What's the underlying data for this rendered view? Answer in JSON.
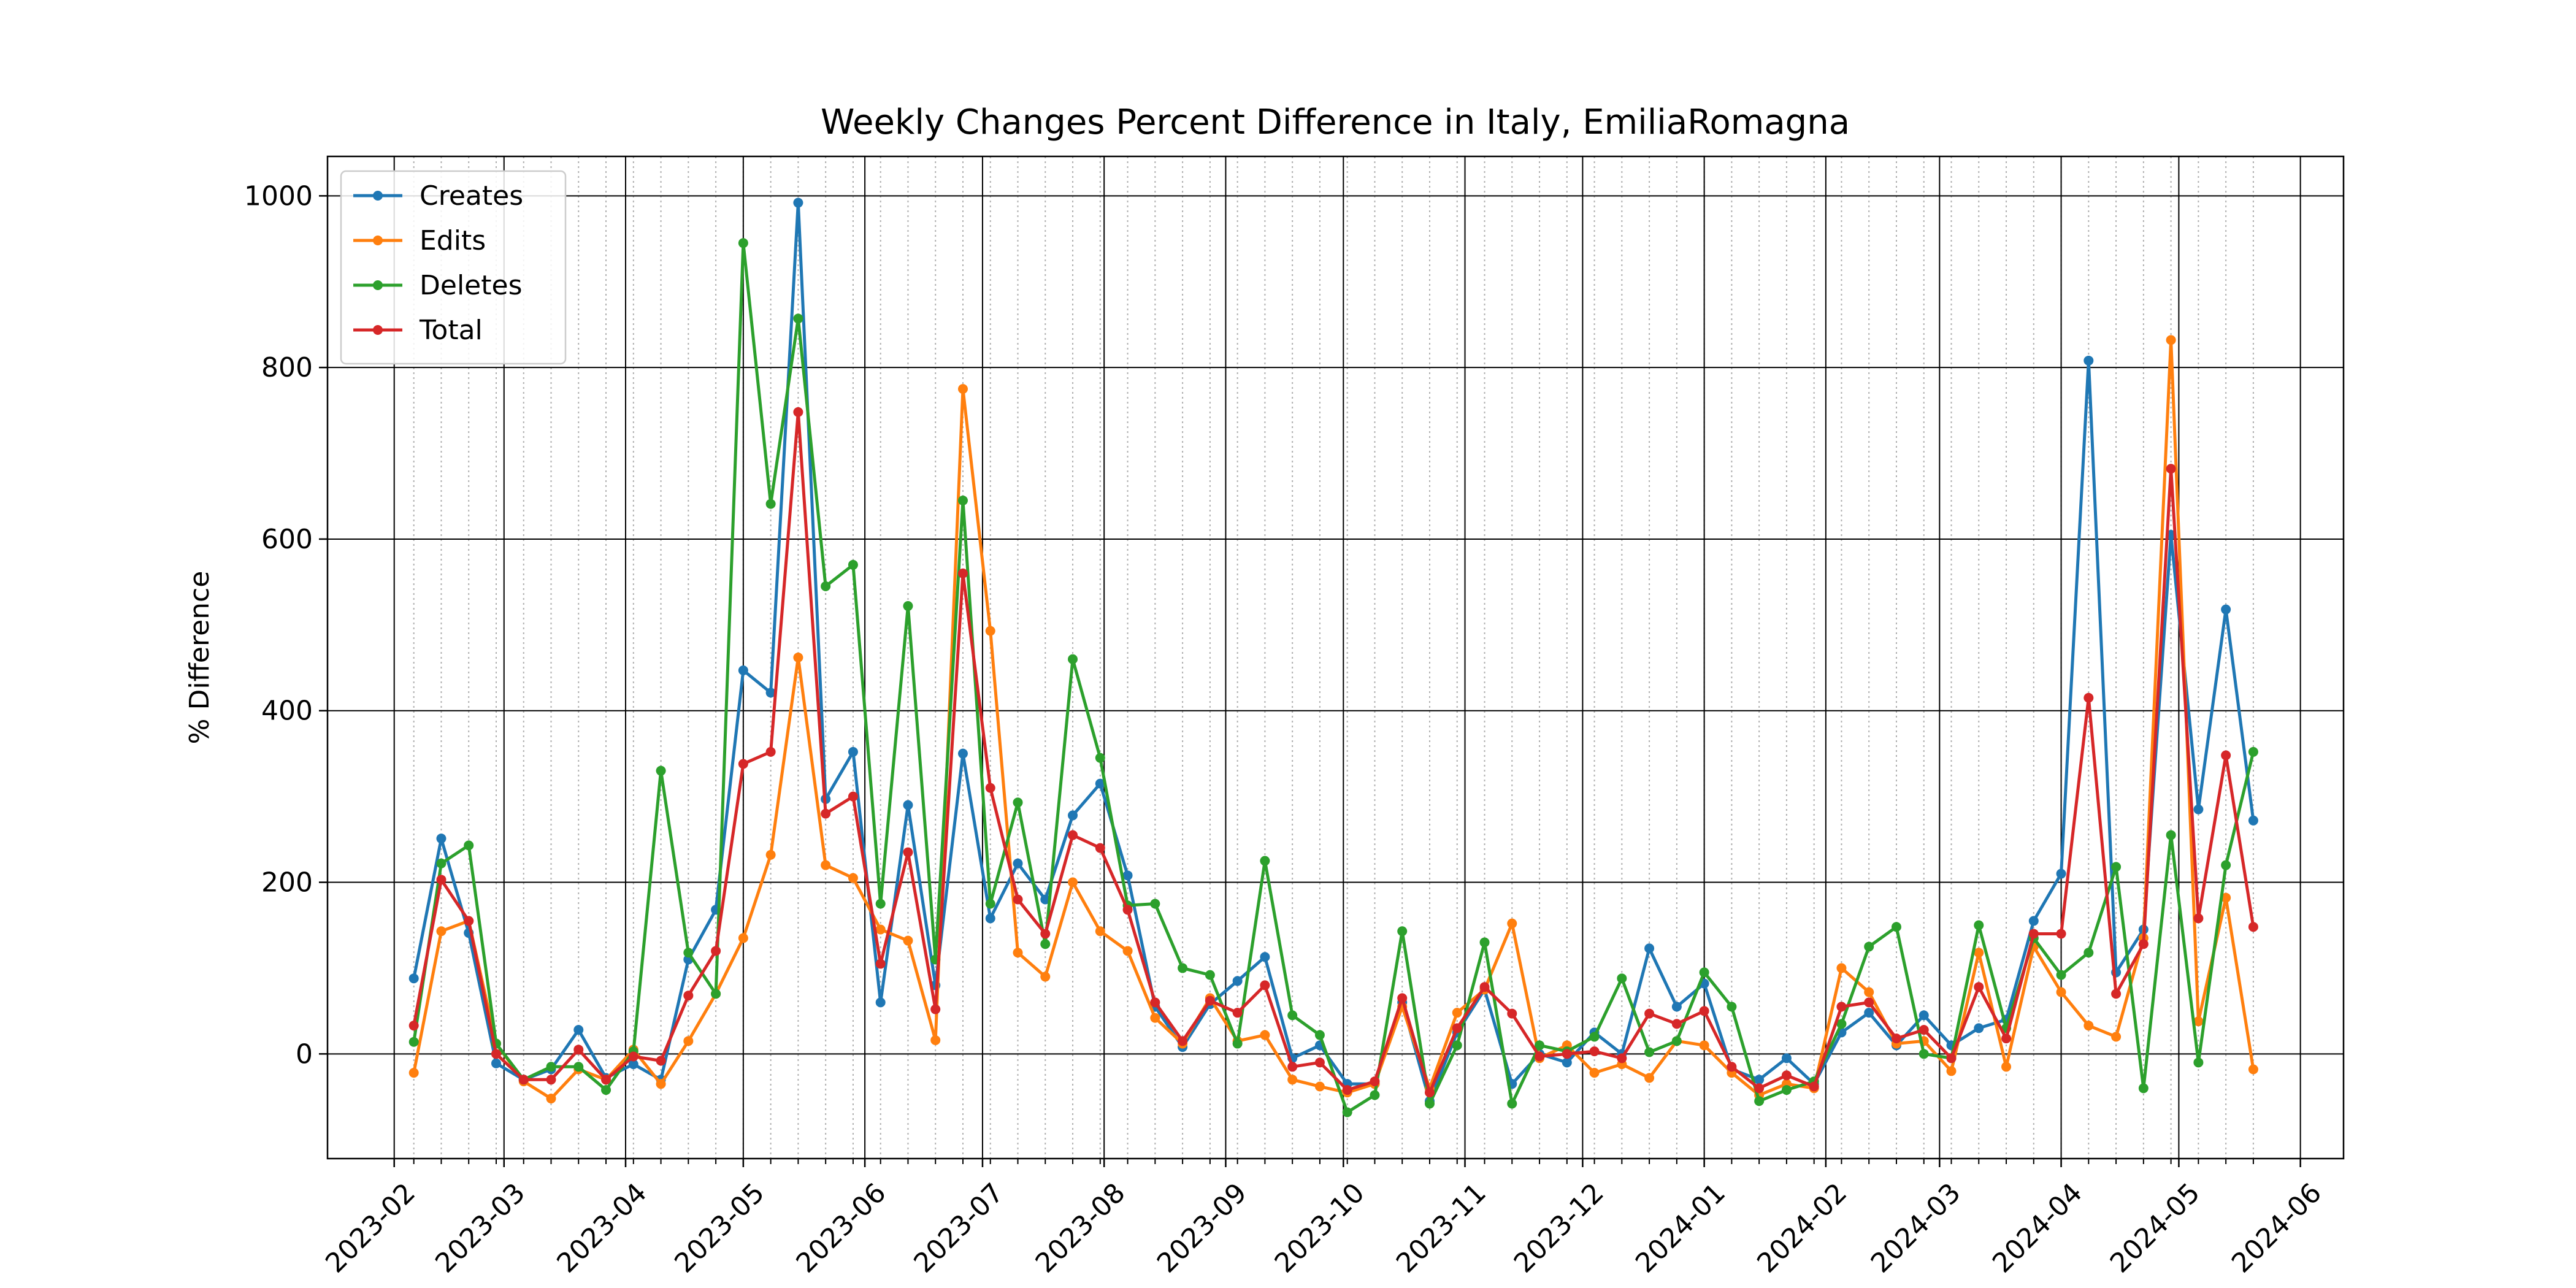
{
  "chart_data": {
    "type": "line",
    "title": "Weekly Changes Percent Difference in Italy, EmiliaRomagna",
    "y_label": "% Difference",
    "x": [
      "2023-02-06",
      "2023-02-13",
      "2023-02-20",
      "2023-02-27",
      "2023-03-06",
      "2023-03-13",
      "2023-03-20",
      "2023-03-27",
      "2023-04-03",
      "2023-04-10",
      "2023-04-17",
      "2023-04-24",
      "2023-05-01",
      "2023-05-08",
      "2023-05-15",
      "2023-05-22",
      "2023-05-29",
      "2023-06-05",
      "2023-06-12",
      "2023-06-19",
      "2023-06-26",
      "2023-07-03",
      "2023-07-10",
      "2023-07-17",
      "2023-07-24",
      "2023-07-31",
      "2023-08-07",
      "2023-08-14",
      "2023-08-21",
      "2023-08-28",
      "2023-09-04",
      "2023-09-11",
      "2023-09-18",
      "2023-09-25",
      "2023-10-02",
      "2023-10-09",
      "2023-10-16",
      "2023-10-23",
      "2023-10-30",
      "2023-11-06",
      "2023-11-13",
      "2023-11-20",
      "2023-11-27",
      "2023-12-04",
      "2023-12-11",
      "2023-12-18",
      "2023-12-25",
      "2024-01-01",
      "2024-01-08",
      "2024-01-15",
      "2024-01-22",
      "2024-01-29",
      "2024-02-05",
      "2024-02-12",
      "2024-02-19",
      "2024-02-26",
      "2024-03-04",
      "2024-03-11",
      "2024-03-18",
      "2024-03-25",
      "2024-04-01",
      "2024-04-08",
      "2024-04-15",
      "2024-04-22",
      "2024-04-29",
      "2024-05-06",
      "2024-05-13",
      "2024-05-20"
    ],
    "series": [
      {
        "name": "Creates",
        "color": "#1f77b4",
        "values": [
          88,
          251,
          141,
          -11,
          -30,
          -18,
          28,
          -28,
          -12,
          -30,
          110,
          168,
          447,
          421,
          992,
          297,
          352,
          60,
          290,
          80,
          350,
          158,
          222,
          180,
          278,
          315,
          208,
          55,
          8,
          58,
          85,
          113,
          -5,
          10,
          -35,
          -35,
          60,
          -55,
          25,
          75,
          -35,
          0,
          -10,
          25,
          0,
          123,
          55,
          82,
          -18,
          -30,
          -5,
          -35,
          25,
          48,
          10,
          45,
          10,
          30,
          40,
          155,
          210,
          808,
          95,
          145,
          605,
          285,
          518,
          272
        ]
      },
      {
        "name": "Edits",
        "color": "#ff7f0e",
        "values": [
          -22,
          143,
          155,
          12,
          -32,
          -52,
          -18,
          -30,
          5,
          -35,
          15,
          70,
          135,
          232,
          462,
          220,
          205,
          145,
          132,
          16,
          775,
          493,
          118,
          90,
          200,
          143,
          120,
          42,
          12,
          65,
          15,
          22,
          -30,
          -38,
          -45,
          -35,
          55,
          -40,
          48,
          75,
          152,
          -5,
          10,
          -22,
          -12,
          -28,
          15,
          10,
          -22,
          -48,
          -35,
          -40,
          100,
          72,
          12,
          15,
          -20,
          118,
          -15,
          125,
          72,
          33,
          20,
          135,
          832,
          38,
          182,
          -18
        ]
      },
      {
        "name": "Deletes",
        "color": "#2ca02c",
        "values": [
          14,
          222,
          243,
          12,
          -30,
          -15,
          -15,
          -42,
          3,
          330,
          118,
          70,
          945,
          641,
          857,
          545,
          570,
          175,
          522,
          110,
          645,
          175,
          293,
          128,
          460,
          345,
          173,
          175,
          100,
          92,
          12,
          225,
          45,
          22,
          -68,
          -48,
          143,
          -58,
          10,
          130,
          -58,
          10,
          3,
          20,
          88,
          2,
          15,
          95,
          55,
          -55,
          -42,
          -32,
          35,
          125,
          148,
          0,
          -5,
          150,
          30,
          135,
          92,
          118,
          218,
          -40,
          255,
          -10,
          220,
          352
        ]
      },
      {
        "name": "Total",
        "color": "#d62728",
        "values": [
          33,
          203,
          155,
          0,
          -30,
          -30,
          5,
          -30,
          -3,
          -8,
          68,
          120,
          338,
          352,
          748,
          280,
          300,
          105,
          235,
          52,
          560,
          310,
          180,
          140,
          255,
          240,
          168,
          60,
          15,
          62,
          48,
          80,
          -15,
          -10,
          -42,
          -32,
          65,
          -45,
          30,
          78,
          47,
          -3,
          0,
          3,
          -5,
          47,
          35,
          50,
          -15,
          -40,
          -25,
          -38,
          55,
          60,
          18,
          28,
          -5,
          78,
          18,
          140,
          140,
          415,
          70,
          128,
          682,
          158,
          348,
          148
        ]
      }
    ],
    "xlim": [
      "2023-01-15",
      "2024-06-12"
    ],
    "xticks": [
      "2023-02",
      "2023-03",
      "2023-04",
      "2023-05",
      "2023-06",
      "2023-07",
      "2023-08",
      "2023-09",
      "2023-10",
      "2023-11",
      "2023-12",
      "2024-01",
      "2024-02",
      "2024-03",
      "2024-04",
      "2024-05",
      "2024-06"
    ],
    "ylim": [
      -122,
      1046
    ],
    "yticks": [
      0,
      200,
      400,
      600,
      800,
      1000
    ],
    "grid": true,
    "minor_grid": true,
    "legend": "upper left"
  }
}
